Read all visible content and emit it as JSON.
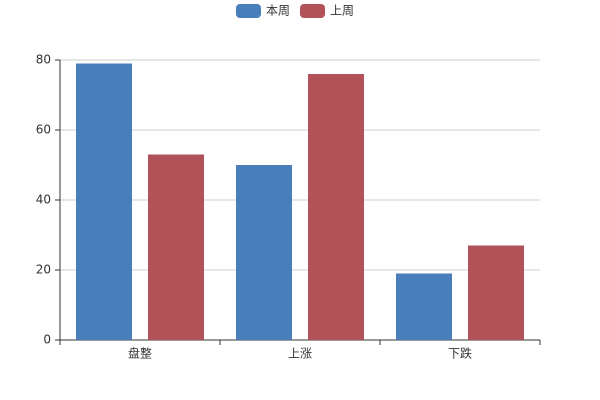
{
  "chart_data": {
    "type": "bar",
    "categories": [
      "盘整",
      "上涨",
      "下跌"
    ],
    "series": [
      {
        "name": "本周",
        "color": "#4a7ebb",
        "values": [
          79,
          50,
          19
        ]
      },
      {
        "name": "上周",
        "color": "#b05258",
        "values": [
          53,
          76,
          27
        ]
      }
    ],
    "ylim": [
      0,
      80
    ],
    "yticks": [
      0,
      20,
      40,
      60,
      80
    ],
    "grid": true,
    "legend": "top"
  }
}
